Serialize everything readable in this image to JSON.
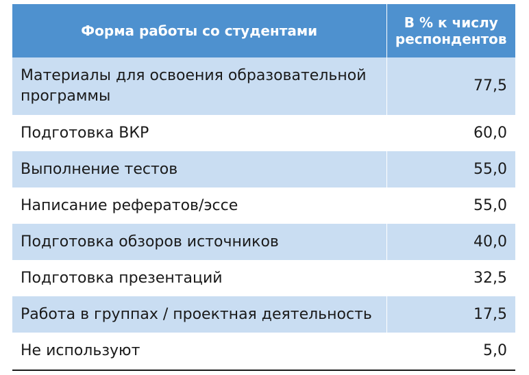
{
  "table": {
    "headers": [
      "Форма работы со студентами",
      "В % к числу респондентов"
    ],
    "rows": [
      {
        "label": "Материалы для освоения образовательной программы",
        "value": "77,5"
      },
      {
        "label": "Подготовка ВКР",
        "value": "60,0"
      },
      {
        "label": "Выполнение тестов",
        "value": "55,0"
      },
      {
        "label": "Написание рефератов/эссе",
        "value": "55,0"
      },
      {
        "label": "Подготовка обзоров источников",
        "value": "40,0"
      },
      {
        "label": "Подготовка презентаций",
        "value": "32,5"
      },
      {
        "label": "Работа в группах / проектная деятельность",
        "value": "17,5"
      },
      {
        "label": "Не используют",
        "value": "5,0"
      }
    ]
  },
  "colors": {
    "header_bg": "#4e91cf",
    "row_shade": "#c9ddf2",
    "header_text": "#ffffff"
  }
}
